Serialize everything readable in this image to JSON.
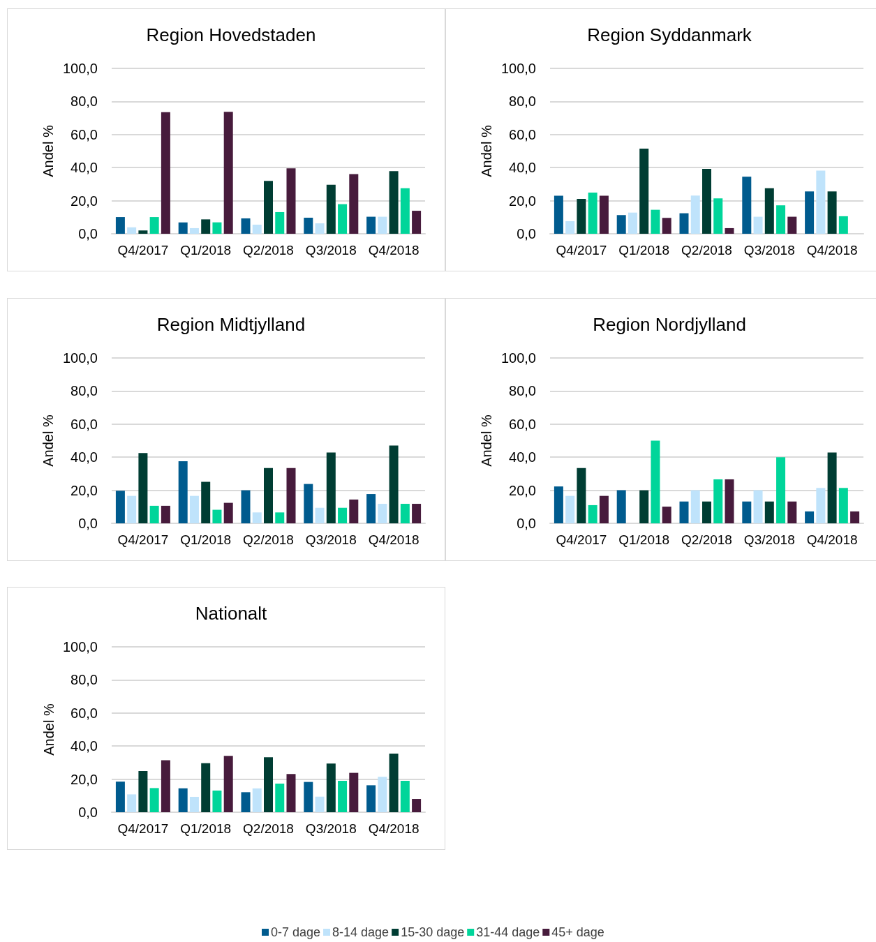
{
  "chart_data": [
    {
      "type": "bar",
      "title": "Region Hovedstaden",
      "ylabel": "Andel %",
      "categories": [
        "Q4/2017",
        "Q1/2018",
        "Q2/2018",
        "Q3/2018",
        "Q4/2018"
      ],
      "ylim": [
        0,
        100
      ],
      "yticks": [
        {
          "value": 0,
          "label": "0,0"
        },
        {
          "value": 20,
          "label": "20,0"
        },
        {
          "value": 40,
          "label": "40,0"
        },
        {
          "value": 60,
          "label": "60,0"
        },
        {
          "value": 80,
          "label": "80,0"
        },
        {
          "value": 100,
          "label": "100,0"
        }
      ],
      "grid": "y",
      "series": [
        {
          "color": "#005b8e",
          "values": [
            10.1,
            6.9,
            9.3,
            9.7,
            10.3
          ]
        },
        {
          "color": "#bfe3fb",
          "values": [
            3.9,
            3.4,
            5.5,
            6.3,
            10.3
          ]
        },
        {
          "color": "#003d33",
          "values": [
            2.0,
            8.7,
            32.0,
            29.6,
            37.9
          ]
        },
        {
          "color": "#00d59a",
          "values": [
            10.1,
            6.9,
            13.1,
            17.9,
            27.5
          ]
        },
        {
          "color": "#471b3c",
          "values": [
            73.5,
            73.7,
            39.6,
            36.1,
            13.9
          ]
        }
      ]
    },
    {
      "type": "bar",
      "title": "Region Syddanmark",
      "ylabel": "Andel %",
      "categories": [
        "Q4/2017",
        "Q1/2018",
        "Q2/2018",
        "Q3/2018",
        "Q4/2018"
      ],
      "ylim": [
        0,
        100
      ],
      "yticks": [
        {
          "value": 0,
          "label": "0,0"
        },
        {
          "value": 20,
          "label": "20,0"
        },
        {
          "value": 40,
          "label": "40,0"
        },
        {
          "value": 60,
          "label": "60,0"
        },
        {
          "value": 80,
          "label": "80,0"
        },
        {
          "value": 100,
          "label": "100,0"
        }
      ],
      "grid": "y",
      "series": [
        {
          "color": "#005b8e",
          "values": [
            23.0,
            11.3,
            12.4,
            34.5,
            25.6
          ]
        },
        {
          "color": "#bfe3fb",
          "values": [
            7.6,
            12.8,
            23.1,
            10.3,
            38.2
          ]
        },
        {
          "color": "#003d33",
          "values": [
            21.1,
            51.5,
            39.2,
            27.5,
            25.6
          ]
        },
        {
          "color": "#00d59a",
          "values": [
            24.9,
            14.5,
            21.4,
            17.2,
            10.6
          ]
        },
        {
          "color": "#471b3c",
          "values": [
            23.0,
            9.6,
            3.4,
            10.3,
            null
          ]
        }
      ]
    },
    {
      "type": "bar",
      "title": "Region Midtjylland",
      "ylabel": "Andel %",
      "categories": [
        "Q4/2017",
        "Q1/2018",
        "Q2/2018",
        "Q3/2018",
        "Q4/2018"
      ],
      "ylim": [
        0,
        100
      ],
      "yticks": [
        {
          "value": 0,
          "label": "0,0"
        },
        {
          "value": 20,
          "label": "20,0"
        },
        {
          "value": 40,
          "label": "40,0"
        },
        {
          "value": 60,
          "label": "60,0"
        },
        {
          "value": 80,
          "label": "80,0"
        },
        {
          "value": 100,
          "label": "100,0"
        }
      ],
      "grid": "y",
      "series": [
        {
          "color": "#005b8e",
          "values": [
            19.7,
            37.6,
            20.0,
            23.8,
            17.7
          ]
        },
        {
          "color": "#bfe3fb",
          "values": [
            16.6,
            16.6,
            6.6,
            9.4,
            11.8
          ]
        },
        {
          "color": "#003d33",
          "values": [
            42.5,
            25.1,
            33.4,
            42.8,
            47.0
          ]
        },
        {
          "color": "#00d59a",
          "values": [
            10.6,
            8.2,
            6.6,
            9.4,
            11.8
          ]
        },
        {
          "color": "#471b3c",
          "values": [
            10.6,
            12.4,
            33.4,
            14.4,
            11.8
          ]
        }
      ]
    },
    {
      "type": "bar",
      "title": "Region Nordjylland",
      "ylabel": "Andel %",
      "categories": [
        "Q4/2017",
        "Q1/2018",
        "Q2/2018",
        "Q3/2018",
        "Q4/2018"
      ],
      "ylim": [
        0,
        100
      ],
      "yticks": [
        {
          "value": 0,
          "label": "0,0"
        },
        {
          "value": 20,
          "label": "20,0"
        },
        {
          "value": 40,
          "label": "40,0"
        },
        {
          "value": 60,
          "label": "60,0"
        },
        {
          "value": 80,
          "label": "80,0"
        },
        {
          "value": 100,
          "label": "100,0"
        }
      ],
      "grid": "y",
      "series": [
        {
          "color": "#005b8e",
          "values": [
            22.3,
            20.0,
            13.2,
            13.2,
            7.2
          ]
        },
        {
          "color": "#bfe3fb",
          "values": [
            16.6,
            null,
            20.0,
            20.0,
            21.4
          ]
        },
        {
          "color": "#003d33",
          "values": [
            33.4,
            20.0,
            13.2,
            13.2,
            42.8
          ]
        },
        {
          "color": "#00d59a",
          "values": [
            11.0,
            50.0,
            26.6,
            40.0,
            21.4
          ]
        },
        {
          "color": "#471b3c",
          "values": [
            16.6,
            10.1,
            26.6,
            13.2,
            7.2
          ]
        }
      ]
    },
    {
      "type": "bar",
      "title": "Nationalt",
      "ylabel": "Andel %",
      "categories": [
        "Q4/2017",
        "Q1/2018",
        "Q2/2018",
        "Q3/2018",
        "Q4/2018"
      ],
      "ylim": [
        0,
        100
      ],
      "yticks": [
        {
          "value": 0,
          "label": "0,0"
        },
        {
          "value": 20,
          "label": "20,0"
        },
        {
          "value": 40,
          "label": "40,0"
        },
        {
          "value": 60,
          "label": "60,0"
        },
        {
          "value": 80,
          "label": "80,0"
        },
        {
          "value": 100,
          "label": "100,0"
        }
      ],
      "grid": "y",
      "legend": "bottom",
      "series": [
        {
          "name": "0-7 dage",
          "color": "#005b8e",
          "values": [
            18.5,
            14.4,
            12.1,
            18.3,
            16.3
          ]
        },
        {
          "name": "8-14 dage",
          "color": "#bfe3fb",
          "values": [
            10.8,
            9.3,
            14.4,
            9.4,
            21.4
          ]
        },
        {
          "name": "15-30 dage",
          "color": "#003d33",
          "values": [
            24.9,
            29.6,
            33.2,
            29.4,
            35.4
          ]
        },
        {
          "name": "31-44 dage",
          "color": "#00d59a",
          "values": [
            14.6,
            13.1,
            17.3,
            19.0,
            19.0
          ]
        },
        {
          "name": "45+ dage",
          "color": "#471b3c",
          "values": [
            31.4,
            34.1,
            23.1,
            23.8,
            8.0
          ]
        }
      ]
    }
  ]
}
